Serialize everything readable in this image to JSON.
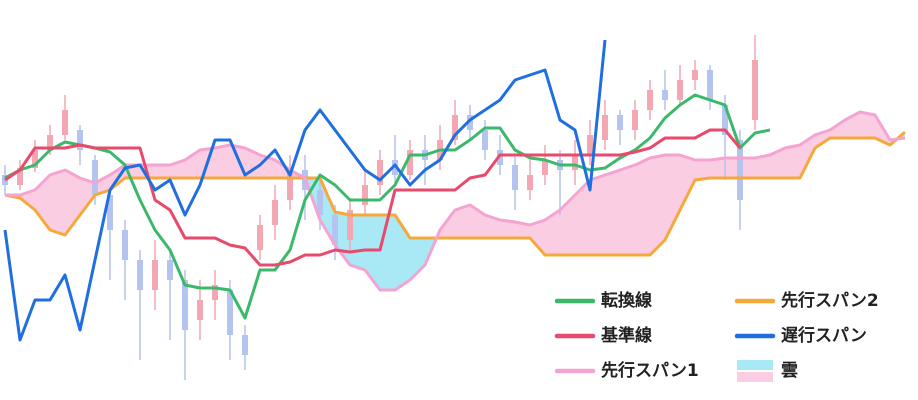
{
  "chart_data": {
    "type": "ichimoku",
    "ylim": [
      0,
      400
    ],
    "candles": {
      "up_color": "#f2a7b2",
      "down_color": "#b4c3ef",
      "open": [
        225,
        215,
        232,
        250,
        265,
        270,
        240,
        205,
        170,
        140,
        110,
        140,
        120,
        80,
        100,
        110,
        65,
        150,
        175,
        200,
        230,
        210,
        185,
        160,
        195,
        215,
        240,
        225,
        250,
        240,
        260,
        285,
        270,
        250,
        235,
        210,
        225,
        240,
        230,
        245,
        260,
        285,
        270,
        290,
        310,
        300,
        320,
        330,
        295,
        260,
        280
      ],
      "close": [
        215,
        232,
        250,
        265,
        290,
        250,
        205,
        170,
        140,
        110,
        140,
        120,
        70,
        100,
        115,
        65,
        45,
        175,
        200,
        230,
        210,
        185,
        155,
        190,
        215,
        240,
        225,
        250,
        240,
        260,
        285,
        270,
        250,
        235,
        210,
        225,
        240,
        230,
        245,
        265,
        285,
        270,
        290,
        310,
        300,
        320,
        330,
        300,
        265,
        200,
        340
      ],
      "high": [
        235,
        240,
        260,
        275,
        305,
        275,
        245,
        210,
        180,
        150,
        160,
        150,
        130,
        120,
        130,
        120,
        75,
        185,
        215,
        245,
        245,
        220,
        195,
        200,
        230,
        250,
        265,
        260,
        265,
        275,
        300,
        295,
        280,
        265,
        245,
        240,
        255,
        250,
        260,
        280,
        300,
        290,
        300,
        320,
        330,
        335,
        340,
        335,
        305,
        270,
        365
      ],
      "low": [
        205,
        210,
        228,
        245,
        260,
        235,
        195,
        120,
        100,
        40,
        90,
        60,
        20,
        60,
        80,
        40,
        30,
        140,
        160,
        190,
        180,
        170,
        140,
        150,
        185,
        205,
        215,
        220,
        215,
        230,
        255,
        260,
        240,
        225,
        190,
        200,
        215,
        185,
        215,
        235,
        250,
        255,
        260,
        280,
        290,
        295,
        310,
        290,
        220,
        170,
        270
      ]
    },
    "series": [
      {
        "name": "転換線",
        "color": "#3bb96a",
        "values": [
          222,
          230,
          235,
          250,
          258,
          255,
          252,
          248,
          235,
          200,
          170,
          150,
          115,
          112,
          112,
          110,
          82,
          130,
          130,
          150,
          200,
          225,
          215,
          200,
          200,
          200,
          215,
          245,
          245,
          250,
          250,
          260,
          272,
          272,
          250,
          242,
          240,
          235,
          235,
          230,
          232,
          242,
          250,
          262,
          282,
          295,
          305,
          300,
          295,
          252,
          267,
          270,
          null,
          null,
          null,
          null,
          null,
          null,
          null,
          null,
          null
        ]
      },
      {
        "name": "基準線",
        "color": "#e84a6c",
        "values": [
          220,
          230,
          252,
          252,
          252,
          255,
          252,
          252,
          252,
          252,
          200,
          190,
          162,
          162,
          162,
          155,
          152,
          135,
          135,
          138,
          145,
          145,
          150,
          148,
          150,
          150,
          210,
          210,
          210,
          210,
          210,
          222,
          225,
          245,
          245,
          245,
          245,
          245,
          245,
          245,
          245,
          245,
          248,
          252,
          262,
          262,
          262,
          270,
          270,
          252,
          null,
          null,
          null,
          null,
          null,
          null,
          null,
          null,
          null,
          null,
          null
        ]
      },
      {
        "name": "先行スパン1",
        "color": "#f5a3d0",
        "values": [
          205,
          205,
          210,
          225,
          230,
          222,
          217,
          225,
          235,
          235,
          235,
          235,
          240,
          250,
          252,
          255,
          252,
          245,
          240,
          230,
          222,
          180,
          155,
          135,
          130,
          110,
          110,
          120,
          135,
          170,
          190,
          195,
          185,
          180,
          178,
          175,
          180,
          190,
          205,
          220,
          225,
          230,
          235,
          242,
          245,
          245,
          240,
          240,
          242,
          242,
          242,
          245,
          252,
          255,
          265,
          270,
          280,
          288,
          285,
          260,
          262
        ]
      },
      {
        "name": "先行スパン2",
        "color": "#f6a93b",
        "values": [
          205,
          202,
          190,
          170,
          165,
          185,
          205,
          210,
          222,
          222,
          222,
          222,
          222,
          222,
          222,
          222,
          222,
          222,
          222,
          222,
          222,
          222,
          188,
          185,
          185,
          185,
          185,
          162,
          162,
          162,
          162,
          162,
          162,
          162,
          162,
          162,
          145,
          145,
          145,
          145,
          145,
          145,
          145,
          145,
          160,
          190,
          220,
          222,
          222,
          222,
          222,
          222,
          222,
          222,
          252,
          262,
          262,
          262,
          262,
          255,
          268
        ]
      },
      {
        "name": "遅行スパン",
        "color": "#1f6fe0",
        "values": [
          170,
          60,
          100,
          100,
          125,
          70,
          140,
          210,
          232,
          235,
          210,
          220,
          185,
          215,
          260,
          260,
          225,
          235,
          250,
          225,
          270,
          290,
          270,
          250,
          230,
          220,
          235,
          215,
          230,
          240,
          265,
          280,
          290,
          300,
          320,
          325,
          330,
          280,
          270,
          210,
          360,
          null,
          null,
          null,
          null,
          null,
          null,
          null,
          null,
          null,
          null,
          null,
          null,
          null,
          null,
          null,
          null,
          null,
          null,
          null,
          null
        ]
      }
    ],
    "cloud": {
      "name": "雲",
      "color_below": "#a9e8f5",
      "color_above": "#fbcde3"
    }
  }
}
